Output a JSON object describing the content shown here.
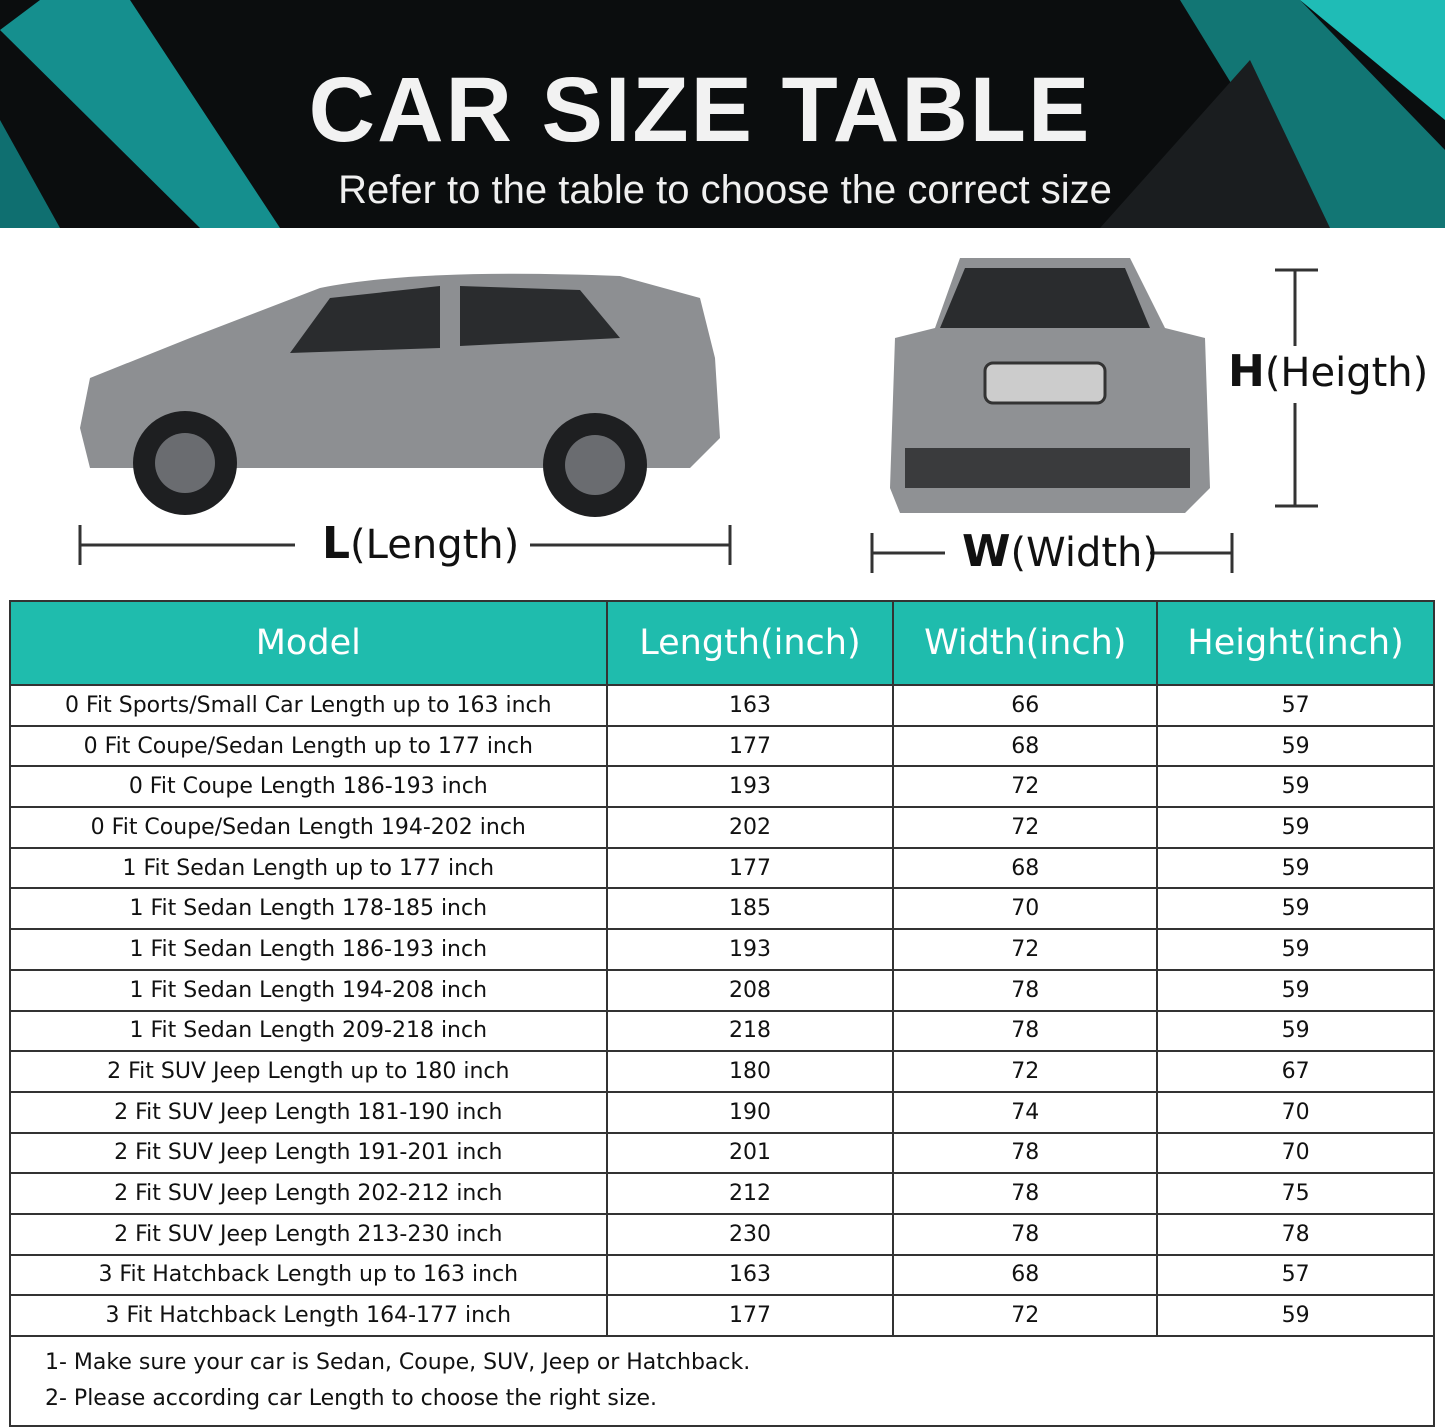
{
  "header": {
    "title": "CAR SIZE TABLE",
    "subtitle": "Refer to the table to choose the correct size"
  },
  "dimensions": {
    "length": {
      "letter": "L",
      "label": "(Length)"
    },
    "width": {
      "letter": "W",
      "label": "(Width)"
    },
    "height": {
      "letter": "H",
      "label": "(Heigth)"
    }
  },
  "colors": {
    "header_bg": "#1fbcad",
    "banner_bg": "#0b0d0e",
    "accent_teal": "#1aa6a6"
  },
  "table": {
    "columns": [
      "Model",
      "Length(inch)",
      "Width(inch)",
      "Height(inch)"
    ],
    "rows": [
      [
        "0 Fit Sports/Small Car Length up to 163 inch",
        "163",
        "66",
        "57"
      ],
      [
        "0 Fit Coupe/Sedan Length up to 177 inch",
        "177",
        "68",
        "59"
      ],
      [
        "0 Fit Coupe Length 186-193 inch",
        "193",
        "72",
        "59"
      ],
      [
        "0 Fit Coupe/Sedan Length 194-202 inch",
        "202",
        "72",
        "59"
      ],
      [
        "1 Fit Sedan Length up to 177 inch",
        "177",
        "68",
        "59"
      ],
      [
        "1 Fit Sedan Length 178-185 inch",
        "185",
        "70",
        "59"
      ],
      [
        "1 Fit Sedan Length 186-193 inch",
        "193",
        "72",
        "59"
      ],
      [
        "1 Fit Sedan Length 194-208 inch",
        "208",
        "78",
        "59"
      ],
      [
        "1 Fit Sedan Length 209-218 inch",
        "218",
        "78",
        "59"
      ],
      [
        "2 Fit SUV Jeep Length up to 180 inch",
        "180",
        "72",
        "67"
      ],
      [
        "2 Fit SUV Jeep Length 181-190 inch",
        "190",
        "74",
        "70"
      ],
      [
        "2 Fit SUV Jeep Length 191-201 inch",
        "201",
        "78",
        "70"
      ],
      [
        "2 Fit SUV Jeep Length 202-212 inch",
        "212",
        "78",
        "75"
      ],
      [
        "2 Fit SUV Jeep Length 213-230 inch",
        "230",
        "78",
        "78"
      ],
      [
        "3 Fit Hatchback Length up to 163 inch",
        "163",
        "68",
        "57"
      ],
      [
        "3 Fit Hatchback Length 164-177 inch",
        "177",
        "72",
        "59"
      ]
    ],
    "notes": [
      "1- Make sure your car is Sedan, Coupe, SUV, Jeep or Hatchback.",
      "2- Please according car Length to choose the right size."
    ]
  }
}
